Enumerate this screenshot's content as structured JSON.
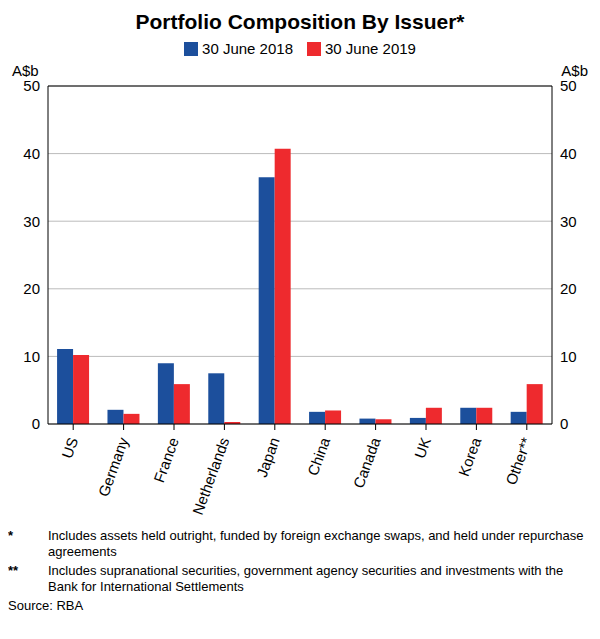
{
  "chart_data": {
    "type": "bar",
    "title": "Portfolio Composition By Issuer*",
    "y_label": "A$b",
    "y2_label": "A$b",
    "categories": [
      "US",
      "Germany",
      "France",
      "Netherlands",
      "Japan",
      "China",
      "Canada",
      "UK",
      "Korea",
      "Other**"
    ],
    "series": [
      {
        "name": "30 June 2018",
        "color": "#1c4f9c",
        "values": [
          11.1,
          2.1,
          9.0,
          7.5,
          36.5,
          1.8,
          0.8,
          0.9,
          2.4,
          1.8
        ]
      },
      {
        "name": "30 June 2019",
        "color": "#ee2a2e",
        "values": [
          10.2,
          1.5,
          5.9,
          0.3,
          40.7,
          2.0,
          0.7,
          2.4,
          2.4,
          5.9
        ]
      }
    ],
    "ylim": [
      0,
      50
    ],
    "yticks": [
      0,
      10,
      20,
      30,
      40,
      50
    ],
    "y2lim": [
      0,
      50
    ],
    "y2ticks": [
      0,
      10,
      20,
      30,
      40,
      50
    ],
    "grid": true,
    "legend": "top",
    "notes": [
      {
        "symbol": "*",
        "text": "Includes assets held outright, funded by foreign exchange swaps, and held under repurchase agreements"
      },
      {
        "symbol": "**",
        "text": "Includes supranational securities, government agency securities and investments with the Bank for International Settlements"
      }
    ],
    "source": "Source: RBA"
  }
}
